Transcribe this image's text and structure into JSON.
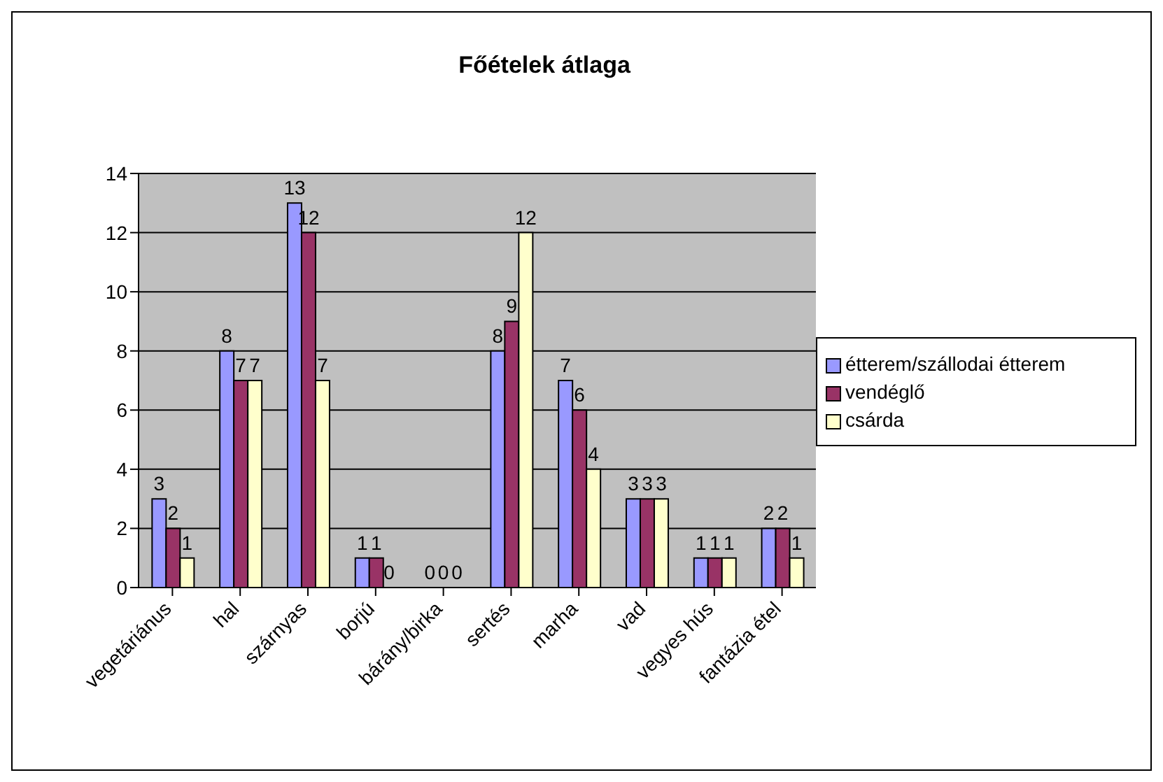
{
  "chart_data": {
    "type": "bar",
    "title": "Főételek átlaga",
    "categories": [
      "vegetáriánus",
      "hal",
      "szárnyas",
      "borjú",
      "bárány/birka",
      "sertés",
      "marha",
      "vad",
      "vegyes hús",
      "fantázia étel"
    ],
    "series": [
      {
        "name": "étterem/szállodai étterem",
        "color": "#9999ff",
        "values": [
          3,
          8,
          13,
          1,
          0,
          8,
          7,
          3,
          1,
          2
        ]
      },
      {
        "name": "vendéglő",
        "color": "#993366",
        "values": [
          2,
          7,
          12,
          1,
          0,
          9,
          6,
          3,
          1,
          2
        ]
      },
      {
        "name": "csárda",
        "color": "#ffffcc",
        "values": [
          1,
          7,
          7,
          0,
          0,
          12,
          4,
          3,
          1,
          1
        ]
      }
    ],
    "ylim": [
      0,
      14
    ],
    "yticks": [
      0,
      2,
      4,
      6,
      8,
      10,
      12,
      14
    ],
    "grid": "y",
    "legend": "right",
    "data_labels": true
  }
}
